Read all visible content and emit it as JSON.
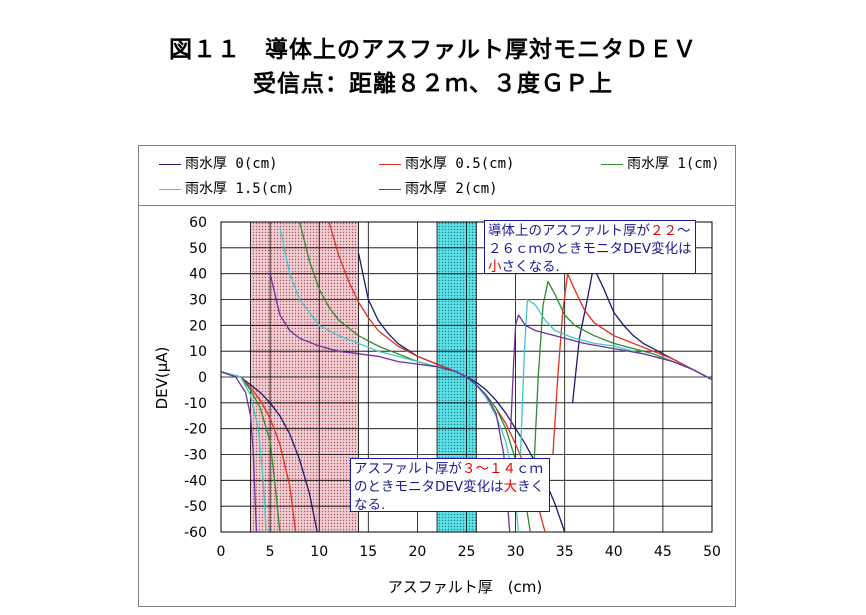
{
  "title_line1": "図１１　導体上のアスファルト厚対モニタＤＥＶ",
  "title_line2": "受信点：距離８２ｍ、３度ＧＰ上",
  "chart_data": {
    "type": "line",
    "xlabel": "アスファルト厚　(cm)",
    "ylabel": "DEV(μA)",
    "xlim": [
      0,
      50
    ],
    "ylim": [
      -60,
      60
    ],
    "xticks": [
      "0",
      "5",
      "10",
      "15",
      "20",
      "25",
      "30",
      "35",
      "40",
      "45",
      "50"
    ],
    "yticks": [
      "60",
      "50",
      "40",
      "30",
      "20",
      "10",
      "0",
      "-10",
      "-20",
      "-30",
      "-40",
      "-50",
      "-60"
    ],
    "grid": true,
    "legend_position": "top",
    "series": [
      {
        "name": "雨水厚 0(cm)",
        "color": "#1a1a6e",
        "segments": [
          [
            [
              0,
              2
            ],
            [
              2,
              0
            ],
            [
              3,
              -3
            ],
            [
              4,
              -6
            ],
            [
              5,
              -10
            ],
            [
              6,
              -15
            ],
            [
              7,
              -22
            ],
            [
              8,
              -32
            ],
            [
              9,
              -45
            ],
            [
              9.8,
              -60
            ]
          ],
          [
            [
              14,
              48
            ],
            [
              15,
              30
            ],
            [
              16,
              22
            ],
            [
              17,
              17
            ],
            [
              18,
              13
            ],
            [
              20,
              8
            ],
            [
              22,
              5
            ],
            [
              24,
              2
            ],
            [
              25,
              0
            ],
            [
              26,
              -2
            ],
            [
              27,
              -5
            ],
            [
              28,
              -9
            ],
            [
              29,
              -14
            ],
            [
              30,
              -20
            ],
            [
              31,
              -26
            ],
            [
              32,
              -33
            ],
            [
              33,
              -40
            ],
            [
              34,
              -49
            ],
            [
              35,
              -60
            ]
          ],
          [
            [
              35.8,
              -10
            ],
            [
              36.5,
              15
            ],
            [
              37.3,
              30
            ],
            [
              37.8,
              40
            ],
            [
              38,
              42
            ],
            [
              39,
              34
            ],
            [
              40,
              25
            ],
            [
              41,
              20
            ],
            [
              42,
              16
            ],
            [
              43,
              13
            ],
            [
              44,
              11
            ],
            [
              45,
              9
            ],
            [
              46,
              7
            ],
            [
              47,
              5
            ],
            [
              48,
              3
            ],
            [
              49,
              1
            ],
            [
              50,
              -1
            ]
          ]
        ]
      },
      {
        "name": "雨水厚 0.5(cm)",
        "color": "#e03020",
        "segments": [
          [
            [
              0,
              2
            ],
            [
              2,
              0
            ],
            [
              3,
              -4
            ],
            [
              4,
              -9
            ],
            [
              5,
              -16
            ],
            [
              6,
              -26
            ],
            [
              7,
              -42
            ],
            [
              7.6,
              -60
            ]
          ],
          [
            [
              11,
              60
            ],
            [
              12,
              47
            ],
            [
              13,
              37
            ],
            [
              14,
              29
            ],
            [
              15,
              23
            ],
            [
              16,
              18
            ],
            [
              18,
              12
            ],
            [
              20,
              8
            ],
            [
              22,
              5
            ],
            [
              24,
              2
            ],
            [
              25,
              0
            ],
            [
              26,
              -3
            ],
            [
              27,
              -7
            ],
            [
              28,
              -12
            ],
            [
              29,
              -18
            ],
            [
              30,
              -26
            ],
            [
              31,
              -35
            ],
            [
              32,
              -46
            ],
            [
              33,
              -60
            ]
          ],
          [
            [
              33.8,
              -30
            ],
            [
              34.3,
              0
            ],
            [
              34.8,
              25
            ],
            [
              35.3,
              40
            ],
            [
              36,
              34
            ],
            [
              37,
              26
            ],
            [
              38,
              21
            ],
            [
              40,
              16
            ],
            [
              42,
              13
            ],
            [
              44,
              10
            ],
            [
              46,
              7
            ],
            [
              48,
              3
            ],
            [
              50,
              -1
            ]
          ]
        ]
      },
      {
        "name": "雨水厚 1(cm)",
        "color": "#2e8b2e",
        "segments": [
          [
            [
              0,
              2
            ],
            [
              2,
              0
            ],
            [
              3,
              -5
            ],
            [
              4,
              -12
            ],
            [
              5,
              -25
            ],
            [
              5.6,
              -45
            ],
            [
              6,
              -60
            ]
          ],
          [
            [
              8,
              60
            ],
            [
              9,
              45
            ],
            [
              10,
              34
            ],
            [
              11,
              27
            ],
            [
              12,
              22
            ],
            [
              14,
              16
            ],
            [
              16,
              12
            ],
            [
              18,
              9
            ],
            [
              20,
              6
            ],
            [
              22,
              4
            ],
            [
              24,
              2
            ],
            [
              25,
              0
            ],
            [
              26,
              -3
            ],
            [
              27,
              -7
            ],
            [
              28,
              -12
            ],
            [
              29,
              -20
            ],
            [
              30,
              -32
            ],
            [
              31,
              -48
            ],
            [
              31.5,
              -60
            ]
          ],
          [
            [
              31.8,
              -40
            ],
            [
              32.3,
              0
            ],
            [
              32.8,
              28
            ],
            [
              33.3,
              37
            ],
            [
              34,
              32
            ],
            [
              35,
              24
            ],
            [
              36,
              20
            ],
            [
              38,
              16
            ],
            [
              40,
              13
            ],
            [
              42,
              11
            ],
            [
              44,
              9
            ],
            [
              46,
              6
            ],
            [
              48,
              3
            ],
            [
              50,
              -1
            ]
          ]
        ]
      },
      {
        "name": "雨水厚 1.5(cm)",
        "color": "#40c8c8",
        "segments": [
          [
            [
              0,
              2
            ],
            [
              2,
              0
            ],
            [
              3,
              -7
            ],
            [
              3.8,
              -20
            ],
            [
              4.3,
              -40
            ],
            [
              4.6,
              -60
            ]
          ],
          [
            [
              6,
              58
            ],
            [
              7,
              40
            ],
            [
              8,
              30
            ],
            [
              9,
              25
            ],
            [
              10,
              20
            ],
            [
              12,
              16
            ],
            [
              14,
              13
            ],
            [
              16,
              10
            ],
            [
              18,
              8
            ],
            [
              20,
              6
            ],
            [
              22,
              4
            ],
            [
              24,
              2
            ],
            [
              25,
              0
            ],
            [
              26,
              -3
            ],
            [
              27,
              -8
            ],
            [
              28,
              -15
            ],
            [
              29,
              -25
            ],
            [
              29.8,
              -40
            ],
            [
              30.3,
              -60
            ]
          ],
          [
            [
              30.5,
              -30
            ],
            [
              30.9,
              10
            ],
            [
              31.2,
              30
            ],
            [
              32,
              28
            ],
            [
              33,
              22
            ],
            [
              34,
              18
            ],
            [
              36,
              15
            ],
            [
              38,
              13
            ],
            [
              40,
              12
            ],
            [
              42,
              10
            ],
            [
              44,
              8
            ],
            [
              46,
              6
            ],
            [
              48,
              3
            ],
            [
              50,
              -1
            ]
          ]
        ]
      },
      {
        "name": "雨水厚 2(cm)",
        "color": "#7030a0",
        "segments": [
          [
            [
              0,
              2
            ],
            [
              1.5,
              0
            ],
            [
              2.5,
              -6
            ],
            [
              3,
              -15
            ],
            [
              3.3,
              -30
            ],
            [
              3.6,
              -60
            ]
          ],
          [
            [
              5,
              40
            ],
            [
              6,
              24
            ],
            [
              7,
              18
            ],
            [
              8,
              15
            ],
            [
              10,
              12
            ],
            [
              12,
              10
            ],
            [
              14,
              9
            ],
            [
              16,
              8
            ],
            [
              18,
              6
            ],
            [
              20,
              5
            ],
            [
              22,
              4
            ],
            [
              24,
              2
            ],
            [
              25,
              0
            ],
            [
              26,
              -3
            ],
            [
              27,
              -7
            ],
            [
              28,
              -14
            ],
            [
              28.8,
              -30
            ],
            [
              29.4,
              -60
            ]
          ],
          [
            [
              29.5,
              -20
            ],
            [
              29.8,
              5
            ],
            [
              30,
              20
            ],
            [
              30.3,
              24
            ],
            [
              31,
              20
            ],
            [
              32,
              18
            ],
            [
              33,
              17
            ],
            [
              35,
              15
            ],
            [
              37,
              13
            ],
            [
              40,
              11
            ],
            [
              43,
              9
            ],
            [
              46,
              6
            ],
            [
              48,
              3
            ],
            [
              50,
              -1
            ]
          ]
        ]
      }
    ],
    "annotations": {
      "note_top": {
        "pre": "導体上のアスファルト厚が",
        "hl1": "２２",
        "mid": "～２６ｃｍのときモニタDEV変化は",
        "hl2": "小",
        "post": "さくなる."
      },
      "note_bottom": {
        "pre": "アスファルト厚が",
        "hl1": "３～１４",
        "mid": "ｃｍのときモニタDEV変化は",
        "hl2": "大",
        "post": "きくなる."
      }
    },
    "shaded_regions": [
      {
        "x": [
          3,
          14
        ],
        "color": "#e8b4b8",
        "pattern": "dotted"
      },
      {
        "x": [
          22,
          26
        ],
        "color": "#40d0d8",
        "pattern": "dotted"
      }
    ]
  }
}
